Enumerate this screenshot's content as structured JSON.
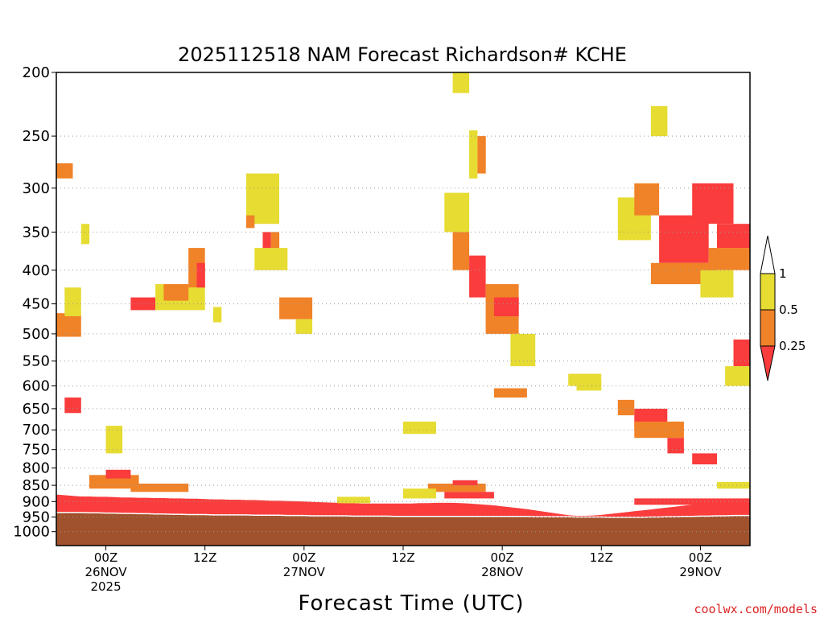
{
  "chart_data": {
    "type": "heatmap",
    "title": "2025112518 NAM Forecast Richardson# KCHE",
    "xlabel": "Forecast Time (UTC)",
    "ylabel": "",
    "y_axis": {
      "reversed": true,
      "ticks": [
        "200",
        "250",
        "300",
        "350",
        "400",
        "450",
        "500",
        "550",
        "600",
        "650",
        "700",
        "750",
        "800",
        "850",
        "900",
        "950",
        "1000"
      ],
      "range": [
        200,
        1050
      ]
    },
    "x_axis": {
      "unit": "hours from 2025112518",
      "range": [
        0,
        84
      ],
      "ticks": [
        {
          "hour": 6,
          "lines": [
            "00Z",
            "26NOV",
            "2025"
          ]
        },
        {
          "hour": 18,
          "lines": [
            "12Z"
          ]
        },
        {
          "hour": 30,
          "lines": [
            "00Z",
            "27NOV"
          ]
        },
        {
          "hour": 42,
          "lines": [
            "12Z"
          ]
        },
        {
          "hour": 54,
          "lines": [
            "00Z",
            "28NOV"
          ]
        },
        {
          "hour": 66,
          "lines": [
            "12Z"
          ]
        },
        {
          "hour": 78,
          "lines": [
            "00Z",
            "29NOV"
          ]
        }
      ]
    },
    "grid": "dotted horizontal at pressure ticks",
    "colorbar": {
      "placement": "right",
      "bins": [
        {
          "range": "> 1",
          "color": "#ffffff"
        },
        {
          "range": "0.5 – 1",
          "color": "#e6dc32"
        },
        {
          "range": "0.25 – 0.5",
          "color": "#f08228"
        },
        {
          "range": "< 0.25",
          "color": "#fa3c3c"
        }
      ],
      "labels": [
        "1",
        "0.5",
        "0.25"
      ]
    },
    "ground_color": "#a0522d",
    "bands": [
      {
        "color": "#fa3c3c",
        "top": [
          878,
          880,
          882,
          884,
          884,
          885,
          885,
          886,
          887,
          887,
          888,
          888,
          889,
          889,
          890,
          890,
          891,
          891,
          892,
          893,
          893,
          894,
          894,
          895,
          895,
          896,
          897,
          897,
          898,
          899,
          900,
          901,
          902,
          903,
          904,
          905,
          905,
          906,
          906,
          906,
          906,
          906,
          906,
          906,
          905,
          905,
          904,
          904,
          904,
          905,
          906,
          908,
          910,
          912,
          915,
          918,
          921,
          924,
          928,
          932,
          936,
          940,
          944,
          946,
          946,
          945,
          943,
          940,
          937,
          934,
          931,
          928,
          925,
          922,
          919,
          916,
          913,
          910,
          907,
          904,
          902,
          900,
          898,
          896,
          895
        ],
        "bottom": [
          955,
          955,
          955,
          955,
          955,
          955,
          955,
          955,
          955,
          955,
          955,
          955,
          955,
          955,
          955,
          955,
          955,
          955,
          955,
          955,
          955,
          955,
          955,
          955,
          955,
          955,
          955,
          955,
          955,
          955,
          955,
          955,
          955,
          955,
          955,
          955,
          955,
          955,
          955,
          955,
          955,
          955,
          955,
          955,
          955,
          955,
          955,
          955,
          955,
          955,
          955,
          955,
          955,
          955,
          955,
          955,
          955,
          955,
          955,
          955,
          955,
          955,
          955,
          955,
          955,
          955,
          955,
          955,
          955,
          955,
          955,
          955,
          955,
          955,
          955,
          955,
          955,
          955,
          955,
          955,
          955,
          955,
          955,
          955,
          955
        ]
      },
      {
        "color": "#a0522d",
        "top": [
          935,
          935,
          935,
          935,
          936,
          936,
          937,
          937,
          938,
          938,
          939,
          939,
          940,
          940,
          941,
          941,
          942,
          942,
          942,
          943,
          943,
          943,
          943,
          943,
          944,
          944,
          944,
          944,
          945,
          945,
          945,
          946,
          946,
          946,
          946,
          946,
          947,
          947,
          947,
          947,
          947,
          948,
          948,
          948,
          948,
          948,
          948,
          948,
          948,
          948,
          948,
          948,
          948,
          948,
          948,
          948,
          948,
          948,
          949,
          949,
          949,
          949,
          949,
          950,
          950,
          950,
          950,
          951,
          951,
          951,
          951,
          951,
          950,
          950,
          949,
          949,
          948,
          948,
          947,
          947,
          946,
          946,
          945,
          945,
          945
        ],
        "bottom": [
          1050,
          1050,
          1050,
          1050,
          1050,
          1050,
          1050,
          1050,
          1050,
          1050,
          1050,
          1050,
          1050,
          1050,
          1050,
          1050,
          1050,
          1050,
          1050,
          1050,
          1050,
          1050,
          1050,
          1050,
          1050,
          1050,
          1050,
          1050,
          1050,
          1050,
          1050,
          1050,
          1050,
          1050,
          1050,
          1050,
          1050,
          1050,
          1050,
          1050,
          1050,
          1050,
          1050,
          1050,
          1050,
          1050,
          1050,
          1050,
          1050,
          1050,
          1050,
          1050,
          1050,
          1050,
          1050,
          1050,
          1050,
          1050,
          1050,
          1050,
          1050,
          1050,
          1050,
          1050,
          1050,
          1050,
          1050,
          1050,
          1050,
          1050,
          1050,
          1050,
          1050,
          1050,
          1050,
          1050,
          1050,
          1050,
          1050,
          1050,
          1050,
          1050,
          1050,
          1050,
          1050
        ]
      }
    ],
    "patches": [
      {
        "x": [
          0,
          2
        ],
        "p": [
          275,
          290
        ],
        "color": "#f08228"
      },
      {
        "x": [
          0,
          3
        ],
        "p": [
          465,
          505
        ],
        "color": "#f08228"
      },
      {
        "x": [
          1,
          3
        ],
        "p": [
          425,
          470
        ],
        "color": "#e6dc32"
      },
      {
        "x": [
          1,
          3
        ],
        "p": [
          625,
          660
        ],
        "color": "#fa3c3c"
      },
      {
        "x": [
          3,
          4
        ],
        "p": [
          340,
          365
        ],
        "color": "#e6dc32"
      },
      {
        "x": [
          6,
          8
        ],
        "p": [
          690,
          760
        ],
        "color": "#e6dc32"
      },
      {
        "x": [
          9,
          12
        ],
        "p": [
          440,
          460
        ],
        "color": "#fa3c3c"
      },
      {
        "x": [
          12,
          18
        ],
        "p": [
          420,
          460
        ],
        "color": "#e6dc32"
      },
      {
        "x": [
          13,
          16
        ],
        "p": [
          420,
          445
        ],
        "color": "#f08228"
      },
      {
        "x": [
          16,
          18
        ],
        "p": [
          370,
          425
        ],
        "color": "#f08228"
      },
      {
        "x": [
          17,
          18
        ],
        "p": [
          390,
          425
        ],
        "color": "#fa3c3c"
      },
      {
        "x": [
          19,
          20
        ],
        "p": [
          455,
          480
        ],
        "color": "#e6dc32"
      },
      {
        "x": [
          23,
          27
        ],
        "p": [
          285,
          340
        ],
        "color": "#e6dc32"
      },
      {
        "x": [
          23,
          24
        ],
        "p": [
          330,
          345
        ],
        "color": "#f08228"
      },
      {
        "x": [
          24,
          28
        ],
        "p": [
          370,
          400
        ],
        "color": "#e6dc32"
      },
      {
        "x": [
          25,
          26
        ],
        "p": [
          350,
          370
        ],
        "color": "#fa3c3c"
      },
      {
        "x": [
          26,
          27
        ],
        "p": [
          350,
          370
        ],
        "color": "#f08228"
      },
      {
        "x": [
          27,
          31
        ],
        "p": [
          440,
          475
        ],
        "color": "#f08228"
      },
      {
        "x": [
          29,
          31
        ],
        "p": [
          475,
          500
        ],
        "color": "#e6dc32"
      },
      {
        "x": [
          47,
          50
        ],
        "p": [
          305,
          350
        ],
        "color": "#e6dc32"
      },
      {
        "x": [
          48,
          50
        ],
        "p": [
          350,
          400
        ],
        "color": "#f08228"
      },
      {
        "x": [
          50,
          51
        ],
        "p": [
          245,
          290
        ],
        "color": "#e6dc32"
      },
      {
        "x": [
          50,
          52
        ],
        "p": [
          380,
          440
        ],
        "color": "#fa3c3c"
      },
      {
        "x": [
          51,
          52
        ],
        "p": [
          250,
          285
        ],
        "color": "#f08228"
      },
      {
        "x": [
          52,
          56
        ],
        "p": [
          420,
          500
        ],
        "color": "#f08228"
      },
      {
        "x": [
          53,
          56
        ],
        "p": [
          440,
          470
        ],
        "color": "#fa3c3c"
      },
      {
        "x": [
          55,
          58
        ],
        "p": [
          500,
          560
        ],
        "color": "#e6dc32"
      },
      {
        "x": [
          53,
          57
        ],
        "p": [
          605,
          625
        ],
        "color": "#f08228"
      },
      {
        "x": [
          62,
          66
        ],
        "p": [
          575,
          600
        ],
        "color": "#e6dc32"
      },
      {
        "x": [
          68,
          70
        ],
        "p": [
          630,
          665
        ],
        "color": "#f08228"
      },
      {
        "x": [
          70,
          74
        ],
        "p": [
          650,
          700
        ],
        "color": "#fa3c3c"
      },
      {
        "x": [
          70,
          76
        ],
        "p": [
          680,
          720
        ],
        "color": "#f08228"
      },
      {
        "x": [
          74,
          76
        ],
        "p": [
          720,
          760
        ],
        "color": "#fa3c3c"
      },
      {
        "x": [
          68,
          72
        ],
        "p": [
          310,
          360
        ],
        "color": "#e6dc32"
      },
      {
        "x": [
          70,
          73
        ],
        "p": [
          295,
          330
        ],
        "color": "#f08228"
      },
      {
        "x": [
          73,
          79
        ],
        "p": [
          330,
          390
        ],
        "color": "#fa3c3c"
      },
      {
        "x": [
          72,
          80
        ],
        "p": [
          390,
          420
        ],
        "color": "#f08228"
      },
      {
        "x": [
          77,
          82
        ],
        "p": [
          295,
          340
        ],
        "color": "#fa3c3c"
      },
      {
        "x": [
          80,
          84
        ],
        "p": [
          340,
          370
        ],
        "color": "#fa3c3c"
      },
      {
        "x": [
          79,
          84
        ],
        "p": [
          370,
          400
        ],
        "color": "#f08228"
      },
      {
        "x": [
          78,
          82
        ],
        "p": [
          400,
          440
        ],
        "color": "#e6dc32"
      },
      {
        "x": [
          82,
          84
        ],
        "p": [
          510,
          560
        ],
        "color": "#fa3c3c"
      },
      {
        "x": [
          81,
          84
        ],
        "p": [
          560,
          600
        ],
        "color": "#e6dc32"
      },
      {
        "x": [
          77,
          80
        ],
        "p": [
          760,
          790
        ],
        "color": "#fa3c3c"
      },
      {
        "x": [
          4,
          10
        ],
        "p": [
          820,
          860
        ],
        "color": "#f08228"
      },
      {
        "x": [
          6,
          9
        ],
        "p": [
          805,
          830
        ],
        "color": "#fa3c3c"
      },
      {
        "x": [
          9,
          16
        ],
        "p": [
          845,
          870
        ],
        "color": "#f08228"
      },
      {
        "x": [
          45,
          52
        ],
        "p": [
          845,
          870
        ],
        "color": "#f08228"
      },
      {
        "x": [
          48,
          51
        ],
        "p": [
          835,
          850
        ],
        "color": "#fa3c3c"
      },
      {
        "x": [
          47,
          53
        ],
        "p": [
          870,
          890
        ],
        "color": "#fa3c3c"
      },
      {
        "x": [
          42,
          46
        ],
        "p": [
          860,
          890
        ],
        "color": "#e6dc32"
      },
      {
        "x": [
          34,
          38
        ],
        "p": [
          885,
          905
        ],
        "color": "#e6dc32"
      },
      {
        "x": [
          70,
          84
        ],
        "p": [
          890,
          910
        ],
        "color": "#fa3c3c"
      },
      {
        "x": [
          80,
          84
        ],
        "p": [
          840,
          860
        ],
        "color": "#e6dc32"
      },
      {
        "x": [
          42,
          46
        ],
        "p": [
          680,
          710
        ],
        "color": "#e6dc32"
      },
      {
        "x": [
          63,
          66
        ],
        "p": [
          590,
          610
        ],
        "color": "#e6dc32"
      },
      {
        "x": [
          48,
          50
        ],
        "p": [
          200,
          215
        ],
        "color": "#e6dc32"
      },
      {
        "x": [
          72,
          74
        ],
        "p": [
          225,
          250
        ],
        "color": "#e6dc32"
      }
    ]
  },
  "credit": "coolwx.com/models"
}
